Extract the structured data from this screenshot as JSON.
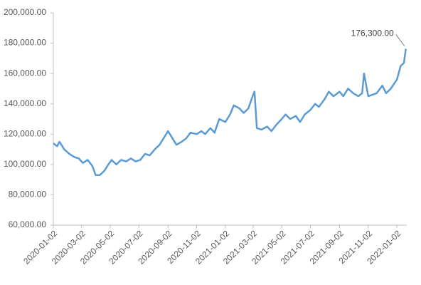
{
  "chart_data": {
    "type": "line",
    "x": [
      "2020-01-02",
      "2020-01-10",
      "2020-01-15",
      "2020-01-25",
      "2020-02-05",
      "2020-02-15",
      "2020-02-25",
      "2020-03-05",
      "2020-03-15",
      "2020-03-25",
      "2020-04-01",
      "2020-04-10",
      "2020-04-20",
      "2020-04-28",
      "2020-05-05",
      "2020-05-15",
      "2020-05-25",
      "2020-06-05",
      "2020-06-15",
      "2020-06-25",
      "2020-07-05",
      "2020-07-15",
      "2020-07-25",
      "2020-08-05",
      "2020-08-15",
      "2020-08-25",
      "2020-09-02",
      "2020-09-10",
      "2020-09-20",
      "2020-10-01",
      "2020-10-10",
      "2020-10-20",
      "2020-11-02",
      "2020-11-12",
      "2020-11-20",
      "2020-12-01",
      "2020-12-10",
      "2020-12-20",
      "2021-01-02",
      "2021-01-12",
      "2021-01-20",
      "2021-02-01",
      "2021-02-10",
      "2021-02-20",
      "2021-03-01",
      "2021-03-05",
      "2021-03-10",
      "2021-03-20",
      "2021-04-01",
      "2021-04-10",
      "2021-04-20",
      "2021-05-02",
      "2021-05-10",
      "2021-05-20",
      "2021-06-01",
      "2021-06-10",
      "2021-06-20",
      "2021-07-02",
      "2021-07-12",
      "2021-07-20",
      "2021-08-01",
      "2021-08-10",
      "2021-08-20",
      "2021-09-02",
      "2021-09-10",
      "2021-09-20",
      "2021-10-01",
      "2021-10-12",
      "2021-10-20",
      "2021-10-24",
      "2021-11-02",
      "2021-11-20",
      "2021-12-02",
      "2021-12-10",
      "2021-12-20",
      "2022-01-02",
      "2022-01-10",
      "2022-01-17",
      "2022-01-21"
    ],
    "series": [
      {
        "color": "#5b9bd5",
        "values": [
          114000,
          112000,
          115000,
          110000,
          107000,
          105000,
          104000,
          101000,
          103000,
          99000,
          93000,
          93000,
          96000,
          100000,
          103000,
          100000,
          103000,
          102000,
          104000,
          102000,
          103000,
          107000,
          106000,
          110000,
          113000,
          118000,
          122000,
          118000,
          113000,
          115000,
          117000,
          121000,
          120000,
          122000,
          120000,
          124000,
          121000,
          130000,
          128000,
          133000,
          139000,
          137000,
          134000,
          137000,
          145000,
          148000,
          124000,
          123000,
          125000,
          122000,
          126000,
          130000,
          133000,
          130000,
          132000,
          128000,
          133000,
          136000,
          140000,
          138000,
          143000,
          148000,
          145000,
          148000,
          145000,
          150000,
          147000,
          145000,
          147000,
          160000,
          145000,
          147000,
          152000,
          147000,
          150000,
          156000,
          165000,
          167000,
          176300
        ],
        "value_labels": [
          null,
          null,
          null,
          null,
          null,
          null,
          null,
          null,
          null,
          null,
          null,
          null,
          null,
          null,
          null,
          null,
          null,
          null,
          null,
          null,
          null,
          null,
          null,
          null,
          null,
          null,
          null,
          null,
          null,
          null,
          null,
          null,
          null,
          null,
          null,
          null,
          null,
          null,
          null,
          null,
          null,
          null,
          null,
          null,
          null,
          null,
          null,
          null,
          null,
          null,
          null,
          null,
          null,
          null,
          null,
          null,
          null,
          null,
          null,
          null,
          null,
          null,
          null,
          null,
          null,
          null,
          null,
          null,
          null,
          null,
          null,
          null,
          null,
          null,
          null,
          null,
          null,
          null,
          "176,300.00"
        ]
      }
    ],
    "xlim": [
      "2020-01-02",
      "2022-01-23"
    ],
    "xticks": [
      "2020-01-02",
      "2020-03-02",
      "2020-05-02",
      "2020-07-02",
      "2020-09-02",
      "2020-11-02",
      "2021-01-02",
      "2021-03-02",
      "2021-05-02",
      "2021-07-02",
      "2021-09-02",
      "2021-11-02",
      "2022-01-02"
    ],
    "ylim": [
      60000,
      200000
    ],
    "yticks": [
      {
        "value": 60000,
        "label": "60,000.00"
      },
      {
        "value": 80000,
        "label": "80,000.00"
      },
      {
        "value": 100000,
        "label": "100,000.00"
      },
      {
        "value": 120000,
        "label": "120,000.00"
      },
      {
        "value": 140000,
        "label": "140,000.00"
      },
      {
        "value": 160000,
        "label": "160,000.00"
      },
      {
        "value": 180000,
        "label": "180,000.00"
      },
      {
        "value": 200000,
        "label": "200,000.00"
      }
    ],
    "grid": false
  }
}
